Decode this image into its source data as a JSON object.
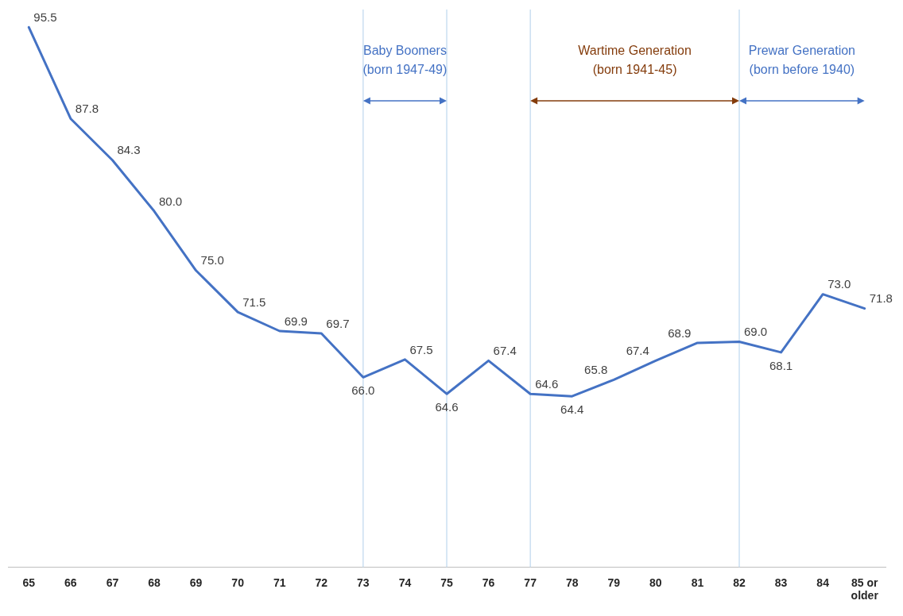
{
  "chart_data": {
    "type": "line",
    "categories": [
      "65",
      "66",
      "67",
      "68",
      "69",
      "70",
      "71",
      "72",
      "73",
      "74",
      "75",
      "76",
      "77",
      "78",
      "79",
      "80",
      "81",
      "82",
      "83",
      "84",
      "85 or older"
    ],
    "series": [
      {
        "color": "#4472c4",
        "values": [
          95.5,
          87.8,
          84.3,
          80.0,
          75.0,
          71.5,
          69.9,
          69.7,
          66.0,
          67.5,
          64.6,
          67.4,
          64.6,
          64.4,
          65.8,
          67.4,
          68.9,
          69.0,
          68.1,
          73.0,
          71.8
        ],
        "value_labels": [
          "95.5",
          "87.8",
          "84.3",
          "80.0",
          "75.0",
          "71.5",
          "69.9",
          "69.7",
          "66.0",
          "67.5",
          "64.6",
          "67.4",
          "64.6",
          "64.4",
          "65.8",
          "67.4",
          "68.9",
          "69.0",
          "68.1",
          "73.0",
          "71.8"
        ]
      }
    ],
    "ylim": [
      50,
      97
    ],
    "tick_labels": "x",
    "marker": "none",
    "line_style": "solid",
    "legend": false,
    "ref_lines": [
      {
        "axis": "x",
        "value": "73",
        "color": "#bdd7ee"
      },
      {
        "axis": "x",
        "value": "75",
        "color": "#bdd7ee"
      },
      {
        "axis": "x",
        "value": "77",
        "color": "#bdd7ee"
      },
      {
        "axis": "x",
        "value": "82",
        "color": "#bdd7ee"
      }
    ],
    "annotations": [
      "Baby Boomers\n(born 1947-49)",
      "Wartime Generation\n(born 1941-45)",
      "Prewar Generation\n(born before 1940)"
    ]
  }
}
